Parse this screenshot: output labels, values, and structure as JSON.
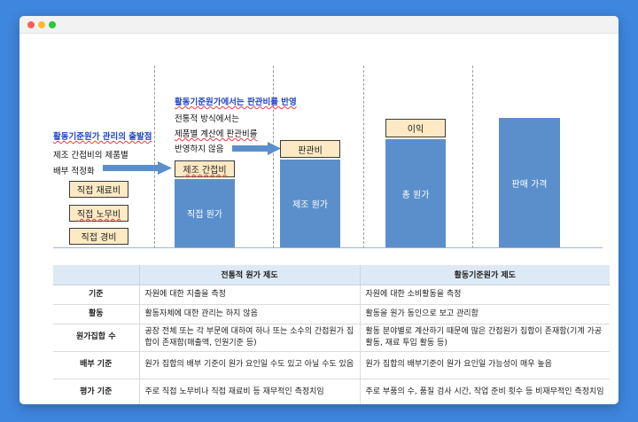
{
  "diagram": {
    "left_title": "활동기준원가 관리의 출발점",
    "left_line1": "제조 간접비의 제품별",
    "left_line2": "배부 적정화",
    "direct_material": "직접 재료비",
    "direct_labor": "직접 노무비",
    "direct_expense": "직접 경비",
    "mfg_overhead": "제조 간접비",
    "direct_cost": "직접 원가",
    "mid_title": "활동기준원가에서는 판관비를 반영",
    "mid_line1": "전통적 방식에서는",
    "mid_line2": "제품별 계산에 판관비를",
    "mid_line3": "반영하지 않음",
    "sga": "판관비",
    "mfg_cost": "제조 원가",
    "profit": "이익",
    "total_cost": "총 원가",
    "sales_price": "판매 가격"
  },
  "table": {
    "headers": [
      "",
      "전통적 원가 제도",
      "활동기준원가 제도"
    ],
    "rows": [
      {
        "label": "기준",
        "traditional": "자원에 대한 지출을 측정",
        "abc": "자원에 대한 소비활동을 측정"
      },
      {
        "label": "활동",
        "traditional": "활동자체에 대한 관리는 하지 않음",
        "abc": "활동을 원가 동인으로 보고 관리함"
      },
      {
        "label": "원가집합 수",
        "traditional": "공장 전체 또는 각 부문에 대하여 하나 또는 소수의 간접원가 집합이 존재함(매출액, 인원기준 등)",
        "abc": "활동 분야별로 계산하기 때문에 많은 간접원가 집합이 존재함(기계 가공 활동, 재료 투입 활동 등)"
      },
      {
        "label": "배부 기준",
        "traditional": "원가 집합의 배부 기준이 원가 요인일 수도 있고 아닐 수도 있음",
        "abc": "원가 집합의 배부기준이 원가 요인일 가능성이 매우 높음"
      },
      {
        "label": "평가 기준",
        "traditional": "주로 직접 노무비나 직접 재료비 등 재무적인 측정치임",
        "abc": "주로 부품의 수, 품질 검사 시간, 작업 준비 횟수 등 비재무적인 측정치임"
      }
    ]
  }
}
